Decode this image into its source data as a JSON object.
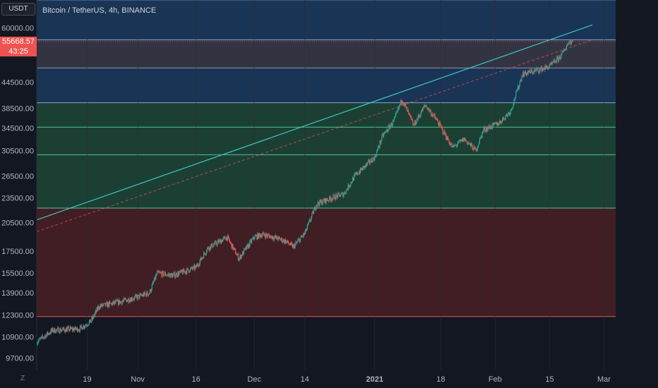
{
  "header": {
    "title": "Bitcoin / TetherUS, 4h, BINANCE",
    "currency": "USDT",
    "currency_prefix": "6"
  },
  "price_label": {
    "price": "55668.57",
    "countdown": "43:25"
  },
  "footer": {
    "zoom_label": "Z"
  },
  "colors": {
    "background": "#131722",
    "up": "#26a69a",
    "down": "#ef5350",
    "zone_blue": "#1c3a5e",
    "zone_gray": "#3a3a48",
    "zone_green": "#1e4636",
    "zone_red": "#4a1f24",
    "trend_line": "#3cc8c8"
  },
  "chart_data": {
    "type": "candlestick",
    "title": "Bitcoin / TetherUS, 4h, BINANCE",
    "scale": "log",
    "y_ticks": [
      60000,
      44500,
      38500,
      34500,
      30500,
      26500,
      23500,
      20500,
      17500,
      15500,
      13900,
      12300,
      10900,
      9700
    ],
    "y_tick_labels": [
      "60000.00",
      "44500.00",
      "38500.00",
      "34500.00",
      "30500.00",
      "26500.00",
      "23500.00",
      "20500.00",
      "17500.00",
      "15500.00",
      "13900.00",
      "12300.00",
      "10900.00",
      "9700.00"
    ],
    "x_tick_labels": [
      "19",
      "Nov",
      "16",
      "Dec",
      "14",
      "2021",
      "18",
      "Feb",
      "15",
      "Mar"
    ],
    "x_tick_dates": [
      "2020-10-19",
      "2020-11-01",
      "2020-11-16",
      "2020-12-01",
      "2020-12-14",
      "2021-01-01",
      "2021-01-18",
      "2021-02-01",
      "2021-02-15",
      "2021-03-01"
    ],
    "x_range": [
      "2020-10-06",
      "2021-03-04"
    ],
    "y_range": [
      9100,
      70000
    ],
    "bold_x_labels": [
      "2021"
    ],
    "zones": [
      {
        "from": 56200,
        "to": 70000,
        "color": "blue"
      },
      {
        "from": 48100,
        "to": 56200,
        "color": "gray"
      },
      {
        "from": 39700,
        "to": 48100,
        "color": "blue"
      },
      {
        "from": 34700,
        "to": 39700,
        "color": "green"
      },
      {
        "from": 29800,
        "to": 34700,
        "color": "green"
      },
      {
        "from": 22200,
        "to": 29800,
        "color": "green"
      },
      {
        "from": 12200,
        "to": 22200,
        "color": "red"
      }
    ],
    "levels": [
      56200,
      48100,
      39700,
      34700,
      29800,
      22200,
      12200
    ],
    "trendlines": [
      {
        "style": "solid",
        "from": [
          "2020-10-06",
          20800
        ],
        "to": [
          "2021-02-26",
          61000
        ]
      },
      {
        "style": "dashed",
        "from": [
          "2020-10-06",
          19500
        ],
        "to": [
          "2021-02-26",
          56200
        ]
      }
    ],
    "last_price": 55668.57,
    "price_path": [
      [
        "2020-10-06",
        10600
      ],
      [
        "2020-10-10",
        11300
      ],
      [
        "2020-10-17",
        11400
      ],
      [
        "2020-10-20",
        11900
      ],
      [
        "2020-10-22",
        12900
      ],
      [
        "2020-10-27",
        13200
      ],
      [
        "2020-11-01",
        13600
      ],
      [
        "2020-11-04",
        13900
      ],
      [
        "2020-11-06",
        15500
      ],
      [
        "2020-11-10",
        15300
      ],
      [
        "2020-11-16",
        16000
      ],
      [
        "2020-11-19",
        17800
      ],
      [
        "2020-11-24",
        18900
      ],
      [
        "2020-11-27",
        16800
      ],
      [
        "2020-12-01",
        18900
      ],
      [
        "2020-12-03",
        19200
      ],
      [
        "2020-12-06",
        18900
      ],
      [
        "2020-12-09",
        18500
      ],
      [
        "2020-12-11",
        17900
      ],
      [
        "2020-12-14",
        19300
      ],
      [
        "2020-12-17",
        22700
      ],
      [
        "2020-12-21",
        23500
      ],
      [
        "2020-12-24",
        24000
      ],
      [
        "2020-12-27",
        26600
      ],
      [
        "2021-01-01",
        29400
      ],
      [
        "2021-01-03",
        33000
      ],
      [
        "2021-01-06",
        36000
      ],
      [
        "2021-01-08",
        40500
      ],
      [
        "2021-01-11",
        35000
      ],
      [
        "2021-01-14",
        39200
      ],
      [
        "2021-01-17",
        36000
      ],
      [
        "2021-01-21",
        31000
      ],
      [
        "2021-01-24",
        32500
      ],
      [
        "2021-01-27",
        30500
      ],
      [
        "2021-01-29",
        34200
      ],
      [
        "2021-02-02",
        35500
      ],
      [
        "2021-02-05",
        38000
      ],
      [
        "2021-02-08",
        46500
      ],
      [
        "2021-02-12",
        47500
      ],
      [
        "2021-02-15",
        48500
      ],
      [
        "2021-02-18",
        51500
      ],
      [
        "2021-02-20",
        55700
      ],
      [
        "2021-02-21",
        55668.57
      ]
    ]
  }
}
